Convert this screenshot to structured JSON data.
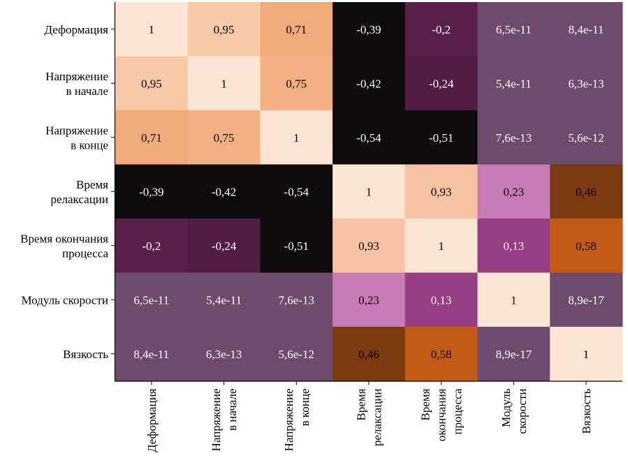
{
  "chart_data": {
    "type": "heatmap",
    "title": "",
    "xlabel": "",
    "ylabel": "",
    "rows": [
      [
        "Деформация"
      ],
      [
        "Напряжение",
        "в начале"
      ],
      [
        "Напряжение",
        "в конце"
      ],
      [
        "Время",
        "релаксации"
      ],
      [
        "Время окончания",
        "процесса"
      ],
      [
        "Модуль скорости"
      ],
      [
        "Вязкость"
      ]
    ],
    "columns": [
      [
        "Деформация"
      ],
      [
        "Напряжение",
        "в начале"
      ],
      [
        "Напряжение",
        "в конце"
      ],
      [
        "Время",
        "релаксации"
      ],
      [
        "Время",
        "окончания",
        "процесса"
      ],
      [
        "Модуль",
        "скорости"
      ],
      [
        "Вязкость"
      ]
    ],
    "cells": [
      [
        {
          "v": 1,
          "t": "1",
          "c": "#fde3d3",
          "tc": "#000000"
        },
        {
          "v": 0.95,
          "t": "0,95",
          "c": "#f8c9a6",
          "tc": "#000000"
        },
        {
          "v": 0.71,
          "t": "0,71",
          "c": "#f1a97a",
          "tc": "#000000"
        },
        {
          "v": -0.39,
          "t": "-0,39",
          "c": "#0e0b0c",
          "tc": "#ffffff"
        },
        {
          "v": -0.2,
          "t": "-0,2",
          "c": "#5a2049",
          "tc": "#ffffff"
        },
        {
          "v": 6.5e-11,
          "t": "6,5e-11",
          "c": "#6e4b6c",
          "tc": "#ffffff"
        },
        {
          "v": 8.4e-11,
          "t": "8,4e-11",
          "c": "#6e4b6c",
          "tc": "#ffffff"
        }
      ],
      [
        {
          "v": 0.95,
          "t": "0,95",
          "c": "#f8c9a6",
          "tc": "#000000"
        },
        {
          "v": 1,
          "t": "1",
          "c": "#fde3d3",
          "tc": "#000000"
        },
        {
          "v": 0.75,
          "t": "0,75",
          "c": "#f3b084",
          "tc": "#000000"
        },
        {
          "v": -0.42,
          "t": "-0,42",
          "c": "#0e0b0c",
          "tc": "#ffffff"
        },
        {
          "v": -0.24,
          "t": "-0,24",
          "c": "#531c43",
          "tc": "#ffffff"
        },
        {
          "v": 5.4e-11,
          "t": "5,4e-11",
          "c": "#6e4b6c",
          "tc": "#ffffff"
        },
        {
          "v": 6.3e-13,
          "t": "6,3e-13",
          "c": "#6e4b6c",
          "tc": "#ffffff"
        }
      ],
      [
        {
          "v": 0.71,
          "t": "0,71",
          "c": "#f1a97a",
          "tc": "#000000"
        },
        {
          "v": 0.75,
          "t": "0,75",
          "c": "#f3b084",
          "tc": "#000000"
        },
        {
          "v": 1,
          "t": "1",
          "c": "#fde3d3",
          "tc": "#000000"
        },
        {
          "v": -0.54,
          "t": "-0,54",
          "c": "#0e0b0c",
          "tc": "#ffffff"
        },
        {
          "v": -0.51,
          "t": "-0,51",
          "c": "#0e0b0c",
          "tc": "#ffffff"
        },
        {
          "v": 7.6e-13,
          "t": "7,6e-13",
          "c": "#6e4b6c",
          "tc": "#ffffff"
        },
        {
          "v": 5.6e-12,
          "t": "5,6e-12",
          "c": "#6e4b6c",
          "tc": "#ffffff"
        }
      ],
      [
        {
          "v": -0.39,
          "t": "-0,39",
          "c": "#0e0b0c",
          "tc": "#ffffff"
        },
        {
          "v": -0.42,
          "t": "-0,42",
          "c": "#0e0b0c",
          "tc": "#ffffff"
        },
        {
          "v": -0.54,
          "t": "-0,54",
          "c": "#0e0b0c",
          "tc": "#ffffff"
        },
        {
          "v": 1,
          "t": "1",
          "c": "#fde3d3",
          "tc": "#000000"
        },
        {
          "v": 0.93,
          "t": "0,93",
          "c": "#f6c4a2",
          "tc": "#000000"
        },
        {
          "v": 0.23,
          "t": "0,23",
          "c": "#c77ab6",
          "tc": "#000000"
        },
        {
          "v": 0.46,
          "t": "0,46",
          "c": "#7b3a11",
          "tc": "#000000"
        }
      ],
      [
        {
          "v": -0.2,
          "t": "-0,2",
          "c": "#5a2049",
          "tc": "#ffffff"
        },
        {
          "v": -0.24,
          "t": "-0,24",
          "c": "#531c43",
          "tc": "#ffffff"
        },
        {
          "v": -0.51,
          "t": "-0,51",
          "c": "#0e0b0c",
          "tc": "#ffffff"
        },
        {
          "v": 0.93,
          "t": "0,93",
          "c": "#f6c4a2",
          "tc": "#000000"
        },
        {
          "v": 1,
          "t": "1",
          "c": "#fde3d3",
          "tc": "#000000"
        },
        {
          "v": 0.13,
          "t": "0,13",
          "c": "#963d84",
          "tc": "#ffffff"
        },
        {
          "v": 0.58,
          "t": "0,58",
          "c": "#c35a16",
          "tc": "#000000"
        }
      ],
      [
        {
          "v": 6.5e-11,
          "t": "6,5e-11",
          "c": "#6e4b6c",
          "tc": "#ffffff"
        },
        {
          "v": 5.4e-11,
          "t": "5,4e-11",
          "c": "#6e4b6c",
          "tc": "#ffffff"
        },
        {
          "v": 7.6e-13,
          "t": "7,6e-13",
          "c": "#6e4b6c",
          "tc": "#ffffff"
        },
        {
          "v": 0.23,
          "t": "0,23",
          "c": "#c77ab6",
          "tc": "#000000"
        },
        {
          "v": 0.13,
          "t": "0,13",
          "c": "#963d84",
          "tc": "#ffffff"
        },
        {
          "v": 1,
          "t": "1",
          "c": "#fde3d3",
          "tc": "#000000"
        },
        {
          "v": 8.9e-17,
          "t": "8,9e-17",
          "c": "#6e4b6c",
          "tc": "#ffffff"
        }
      ],
      [
        {
          "v": 8.4e-11,
          "t": "8,4e-11",
          "c": "#6e4b6c",
          "tc": "#ffffff"
        },
        {
          "v": 6.3e-13,
          "t": "6,3e-13",
          "c": "#6e4b6c",
          "tc": "#ffffff"
        },
        {
          "v": 5.6e-12,
          "t": "5,6e-12",
          "c": "#6e4b6c",
          "tc": "#ffffff"
        },
        {
          "v": 0.46,
          "t": "0,46",
          "c": "#7b3a11",
          "tc": "#000000"
        },
        {
          "v": 0.58,
          "t": "0,58",
          "c": "#c35a16",
          "tc": "#000000"
        },
        {
          "v": 8.9e-17,
          "t": "8,9e-17",
          "c": "#6e4b6c",
          "tc": "#ffffff"
        },
        {
          "v": 1,
          "t": "1",
          "c": "#fde3d3",
          "tc": "#000000"
        }
      ]
    ],
    "grid": false,
    "legend": "none"
  }
}
